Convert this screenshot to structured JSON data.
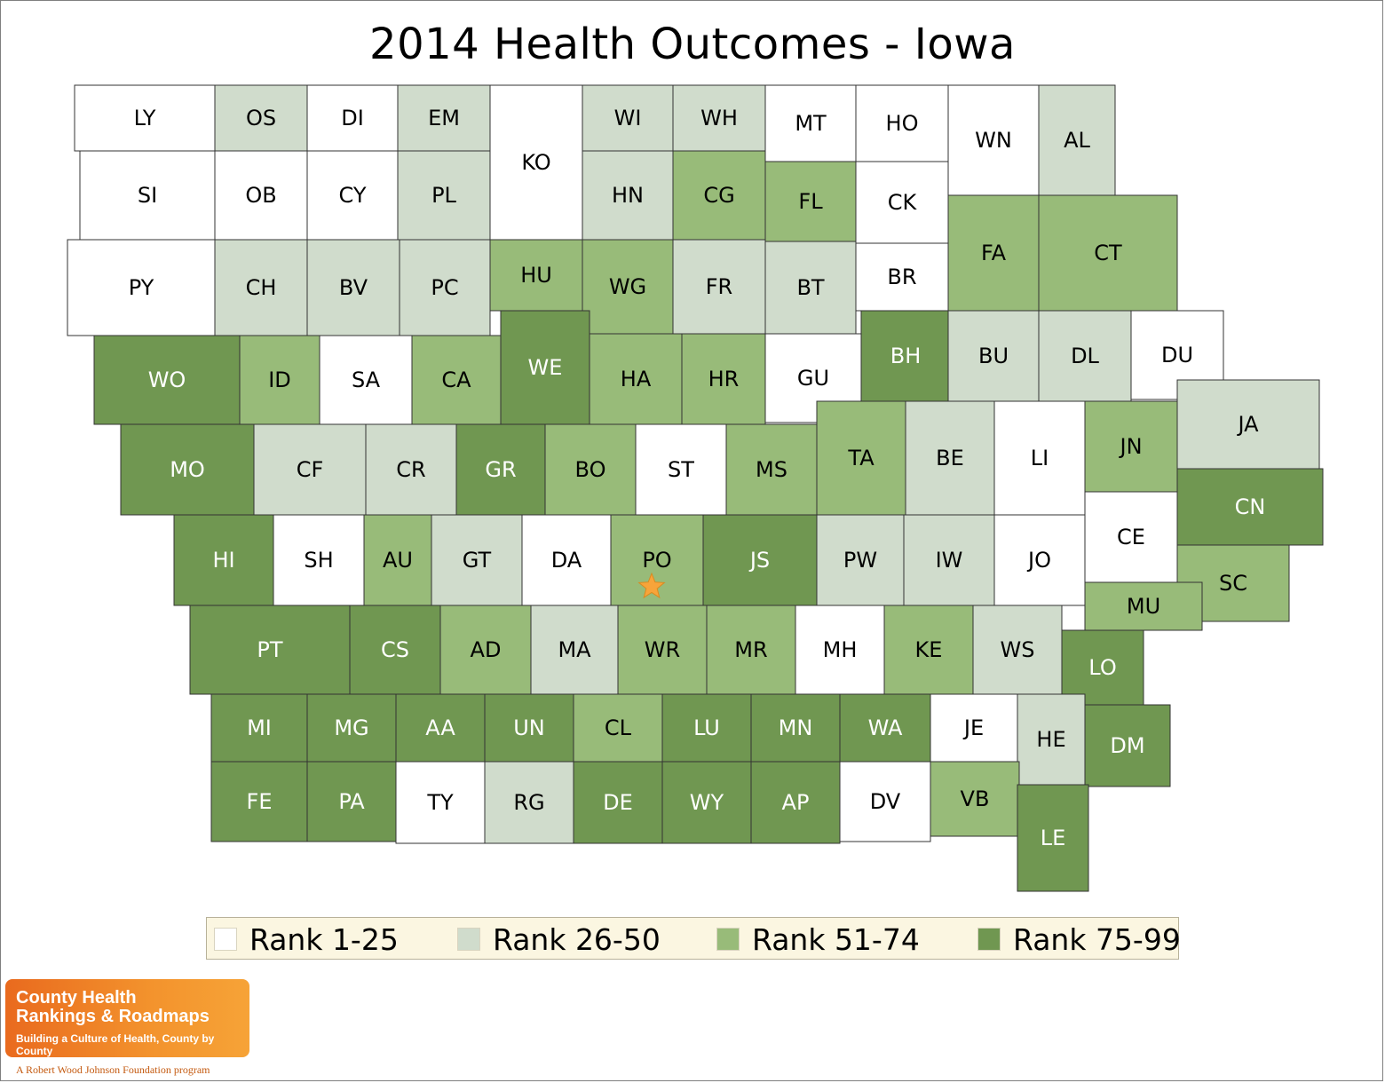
{
  "title": "2014 Health Outcomes - Iowa",
  "legend": [
    {
      "label": "Rank 1-25",
      "color": "#ffffff"
    },
    {
      "label": "Rank 26-50",
      "color": "#d0dccc"
    },
    {
      "label": "Rank 51-74",
      "color": "#98bb79"
    },
    {
      "label": "Rank 75-99",
      "color": "#709751"
    }
  ],
  "rank_colors": [
    "#ffffff",
    "#d0dccc",
    "#98bb79",
    "#709751"
  ],
  "counties": [
    {
      "abbr": "LY",
      "rank_group": 0
    },
    {
      "abbr": "OS",
      "rank_group": 1
    },
    {
      "abbr": "DI",
      "rank_group": 0
    },
    {
      "abbr": "EM",
      "rank_group": 1
    },
    {
      "abbr": "KO",
      "rank_group": 0
    },
    {
      "abbr": "WI",
      "rank_group": 1
    },
    {
      "abbr": "WH",
      "rank_group": 1
    },
    {
      "abbr": "MT",
      "rank_group": 0
    },
    {
      "abbr": "HO",
      "rank_group": 0
    },
    {
      "abbr": "WN",
      "rank_group": 0
    },
    {
      "abbr": "AL",
      "rank_group": 1
    },
    {
      "abbr": "SI",
      "rank_group": 0
    },
    {
      "abbr": "OB",
      "rank_group": 0
    },
    {
      "abbr": "CY",
      "rank_group": 0
    },
    {
      "abbr": "PL",
      "rank_group": 1
    },
    {
      "abbr": "HN",
      "rank_group": 1
    },
    {
      "abbr": "CG",
      "rank_group": 2
    },
    {
      "abbr": "FL",
      "rank_group": 2
    },
    {
      "abbr": "CK",
      "rank_group": 0
    },
    {
      "abbr": "FA",
      "rank_group": 2
    },
    {
      "abbr": "CT",
      "rank_group": 2
    },
    {
      "abbr": "PY",
      "rank_group": 0
    },
    {
      "abbr": "CH",
      "rank_group": 1
    },
    {
      "abbr": "BV",
      "rank_group": 1
    },
    {
      "abbr": "PC",
      "rank_group": 1
    },
    {
      "abbr": "HU",
      "rank_group": 2
    },
    {
      "abbr": "WG",
      "rank_group": 2
    },
    {
      "abbr": "FR",
      "rank_group": 1
    },
    {
      "abbr": "BT",
      "rank_group": 1
    },
    {
      "abbr": "BR",
      "rank_group": 0
    },
    {
      "abbr": "WO",
      "rank_group": 3
    },
    {
      "abbr": "ID",
      "rank_group": 2
    },
    {
      "abbr": "SA",
      "rank_group": 0
    },
    {
      "abbr": "CA",
      "rank_group": 2
    },
    {
      "abbr": "WE",
      "rank_group": 3
    },
    {
      "abbr": "HA",
      "rank_group": 2
    },
    {
      "abbr": "HR",
      "rank_group": 2
    },
    {
      "abbr": "GU",
      "rank_group": 0
    },
    {
      "abbr": "BH",
      "rank_group": 3
    },
    {
      "abbr": "BU",
      "rank_group": 1
    },
    {
      "abbr": "DL",
      "rank_group": 1
    },
    {
      "abbr": "DU",
      "rank_group": 0
    },
    {
      "abbr": "MO",
      "rank_group": 3
    },
    {
      "abbr": "CF",
      "rank_group": 1
    },
    {
      "abbr": "CR",
      "rank_group": 1
    },
    {
      "abbr": "GR",
      "rank_group": 3
    },
    {
      "abbr": "BO",
      "rank_group": 2
    },
    {
      "abbr": "ST",
      "rank_group": 0
    },
    {
      "abbr": "MS",
      "rank_group": 2
    },
    {
      "abbr": "TA",
      "rank_group": 2
    },
    {
      "abbr": "BE",
      "rank_group": 1
    },
    {
      "abbr": "LI",
      "rank_group": 0
    },
    {
      "abbr": "JN",
      "rank_group": 2
    },
    {
      "abbr": "JA",
      "rank_group": 1
    },
    {
      "abbr": "CN",
      "rank_group": 3
    },
    {
      "abbr": "HI",
      "rank_group": 3
    },
    {
      "abbr": "SH",
      "rank_group": 0
    },
    {
      "abbr": "AU",
      "rank_group": 2
    },
    {
      "abbr": "GT",
      "rank_group": 1
    },
    {
      "abbr": "DA",
      "rank_group": 0
    },
    {
      "abbr": "PO",
      "rank_group": 2
    },
    {
      "abbr": "JS",
      "rank_group": 3
    },
    {
      "abbr": "PW",
      "rank_group": 1
    },
    {
      "abbr": "IW",
      "rank_group": 1
    },
    {
      "abbr": "JO",
      "rank_group": 0
    },
    {
      "abbr": "CE",
      "rank_group": 0
    },
    {
      "abbr": "SC",
      "rank_group": 2
    },
    {
      "abbr": "MU",
      "rank_group": 2
    },
    {
      "abbr": "PT",
      "rank_group": 3
    },
    {
      "abbr": "CS",
      "rank_group": 3
    },
    {
      "abbr": "AD",
      "rank_group": 2
    },
    {
      "abbr": "MA",
      "rank_group": 1
    },
    {
      "abbr": "WR",
      "rank_group": 2
    },
    {
      "abbr": "MR",
      "rank_group": 2
    },
    {
      "abbr": "MH",
      "rank_group": 0
    },
    {
      "abbr": "KE",
      "rank_group": 2
    },
    {
      "abbr": "WS",
      "rank_group": 1
    },
    {
      "abbr": "LO",
      "rank_group": 3
    },
    {
      "abbr": "MI",
      "rank_group": 3
    },
    {
      "abbr": "MG",
      "rank_group": 3
    },
    {
      "abbr": "AA",
      "rank_group": 3
    },
    {
      "abbr": "UN",
      "rank_group": 3
    },
    {
      "abbr": "CL",
      "rank_group": 2
    },
    {
      "abbr": "LU",
      "rank_group": 3
    },
    {
      "abbr": "MN",
      "rank_group": 3
    },
    {
      "abbr": "WA",
      "rank_group": 3
    },
    {
      "abbr": "JE",
      "rank_group": 0
    },
    {
      "abbr": "HE",
      "rank_group": 1
    },
    {
      "abbr": "DM",
      "rank_group": 3
    },
    {
      "abbr": "FE",
      "rank_group": 3
    },
    {
      "abbr": "PA",
      "rank_group": 3
    },
    {
      "abbr": "TY",
      "rank_group": 0
    },
    {
      "abbr": "RG",
      "rank_group": 1
    },
    {
      "abbr": "DE",
      "rank_group": 3
    },
    {
      "abbr": "WY",
      "rank_group": 3
    },
    {
      "abbr": "AP",
      "rank_group": 3
    },
    {
      "abbr": "DV",
      "rank_group": 0
    },
    {
      "abbr": "VB",
      "rank_group": 2
    },
    {
      "abbr": "LE",
      "rank_group": 3
    }
  ],
  "capital_marker": {
    "county": "PO",
    "color": "#f7a43a"
  },
  "logo": {
    "line1": "County Health",
    "line2": "Rankings & Roadmaps",
    "tagline": "Building a Culture of Health, County by County",
    "foundation": "A Robert Wood Johnson Foundation program"
  }
}
